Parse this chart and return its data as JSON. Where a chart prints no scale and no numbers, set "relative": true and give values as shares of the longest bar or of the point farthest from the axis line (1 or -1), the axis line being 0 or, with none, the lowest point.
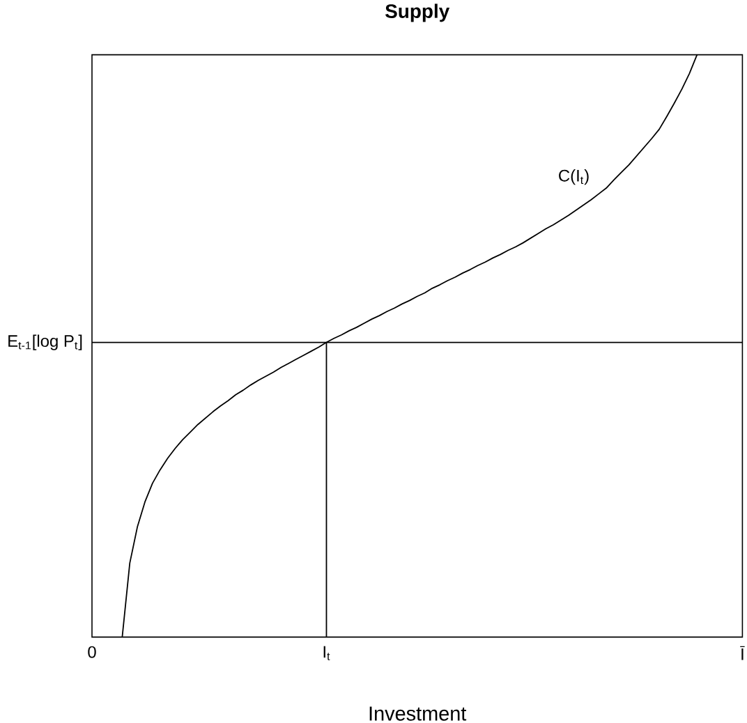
{
  "chart_data": {
    "type": "line",
    "title": "Supply",
    "xlabel": "Investment",
    "relative": true,
    "categories": [
      "0",
      null,
      null,
      null,
      null,
      null,
      null,
      null,
      null,
      null,
      null,
      null,
      null,
      null,
      null,
      null,
      null,
      null,
      null,
      null,
      null,
      null,
      null,
      null,
      null,
      null,
      null,
      null,
      null,
      null,
      null,
      "I$_{t}$",
      null,
      null,
      null,
      null,
      null,
      null,
      null,
      null,
      null,
      null,
      null,
      null,
      null,
      null,
      null,
      null,
      null,
      null,
      null,
      null,
      null,
      null,
      null,
      null,
      null,
      null,
      null,
      null,
      null,
      null,
      null,
      null,
      null,
      null,
      null,
      null,
      null,
      null,
      null,
      null,
      null,
      null,
      null,
      null,
      null,
      null,
      null,
      null,
      null,
      null,
      null,
      null,
      null,
      null,
      "Ī"
    ],
    "series": [
      {
        "name": "C(I$_{t}$)",
        "color": "#000000",
        "values": [
          null,
          null,
          null,
          null,
          0,
          0.127,
          0.189,
          0.232,
          0.264,
          0.287,
          0.307,
          0.324,
          0.339,
          0.352,
          0.365,
          0.376,
          0.387,
          0.397,
          0.406,
          0.416,
          0.424,
          0.433,
          0.441,
          0.448,
          0.455,
          0.463,
          0.47,
          0.477,
          0.484,
          0.491,
          0.498,
          0.506,
          0.513,
          0.519,
          0.526,
          0.532,
          0.539,
          0.546,
          0.552,
          0.559,
          0.565,
          0.572,
          0.578,
          0.585,
          0.591,
          0.599,
          0.605,
          0.612,
          0.618,
          0.625,
          0.631,
          0.638,
          0.644,
          0.651,
          0.657,
          0.664,
          0.67,
          0.677,
          0.685,
          0.693,
          0.701,
          0.708,
          0.716,
          0.724,
          0.733,
          0.742,
          0.751,
          0.761,
          0.771,
          0.785,
          0.798,
          0.811,
          0.826,
          0.841,
          0.856,
          0.872,
          0.894,
          0.917,
          0.941,
          0.968,
          1,
          null,
          null,
          null,
          null,
          null,
          null
        ]
      },
      {
        "type": "bar",
        "color": "#000000",
        "values": [
          null,
          null,
          null,
          null,
          null,
          null,
          null,
          null,
          null,
          null,
          null,
          null,
          null,
          null,
          null,
          null,
          null,
          null,
          null,
          null,
          null,
          null,
          null,
          null,
          null,
          null,
          null,
          null,
          null,
          null,
          null,
          0.506,
          null,
          null,
          null,
          null,
          null,
          null,
          null,
          null,
          null,
          null,
          null,
          null,
          null,
          null,
          null,
          null,
          null,
          null,
          null,
          null,
          null,
          null,
          null,
          null,
          null,
          null,
          null,
          null,
          null,
          null,
          null,
          null,
          null,
          null,
          null,
          null,
          null,
          null,
          null,
          null,
          null,
          null,
          null,
          null,
          null,
          null,
          null,
          null,
          null,
          null,
          null,
          null,
          null,
          null,
          null
        ]
      }
    ],
    "ref_lines": [
      {
        "axis": "y",
        "value": 0.506,
        "label": "E$_{t-1}$[log P$_{t}$]",
        "color": "#000000"
      }
    ]
  }
}
